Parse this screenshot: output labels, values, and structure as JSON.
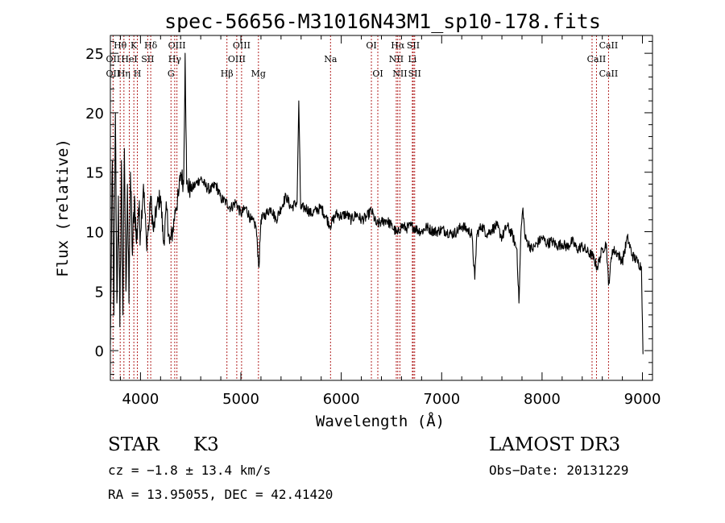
{
  "chart_data": {
    "type": "line",
    "title": "spec-56656-M31016N43M1_sp10-178.fits",
    "xlabel": "Wavelength (Å)",
    "ylabel": "Flux (relative)",
    "xlim": [
      3700,
      9100
    ],
    "ylim": [
      -2.5,
      26.5
    ],
    "xticks": [
      4000,
      5000,
      6000,
      7000,
      8000,
      9000
    ],
    "yticks": [
      0,
      5,
      10,
      15,
      20,
      25
    ],
    "series": [
      {
        "name": "spectrum",
        "anchors": [
          [
            3700,
            0.5
          ],
          [
            3720,
            16
          ],
          [
            3735,
            3
          ],
          [
            3750,
            20
          ],
          [
            3765,
            4
          ],
          [
            3780,
            13
          ],
          [
            3795,
            2
          ],
          [
            3810,
            16
          ],
          [
            3825,
            3
          ],
          [
            3840,
            17
          ],
          [
            3855,
            5
          ],
          [
            3870,
            14
          ],
          [
            3885,
            4
          ],
          [
            3900,
            15
          ],
          [
            3920,
            8
          ],
          [
            3940,
            13
          ],
          [
            3960,
            9
          ],
          [
            3980,
            12
          ],
          [
            4000,
            10
          ],
          [
            4030,
            14
          ],
          [
            4060,
            9
          ],
          [
            4090,
            11
          ],
          [
            4100,
            13
          ],
          [
            4130,
            10
          ],
          [
            4160,
            12
          ],
          [
            4200,
            13
          ],
          [
            4230,
            9
          ],
          [
            4260,
            12
          ],
          [
            4290,
            9
          ],
          [
            4320,
            10
          ],
          [
            4350,
            12
          ],
          [
            4380,
            13
          ],
          [
            4400,
            15
          ],
          [
            4430,
            14
          ],
          [
            4445,
            25
          ],
          [
            4460,
            14
          ],
          [
            4500,
            13.5
          ],
          [
            4550,
            14
          ],
          [
            4600,
            14.5
          ],
          [
            4650,
            13.8
          ],
          [
            4700,
            13.5
          ],
          [
            4750,
            14
          ],
          [
            4800,
            12.8
          ],
          [
            4850,
            12.5
          ],
          [
            4900,
            12
          ],
          [
            4950,
            12.5
          ],
          [
            5000,
            11.5
          ],
          [
            5050,
            12
          ],
          [
            5100,
            11
          ],
          [
            5150,
            10.5
          ],
          [
            5180,
            7
          ],
          [
            5200,
            11
          ],
          [
            5250,
            11.5
          ],
          [
            5300,
            12
          ],
          [
            5350,
            11
          ],
          [
            5400,
            12
          ],
          [
            5450,
            13
          ],
          [
            5500,
            12
          ],
          [
            5560,
            12.5
          ],
          [
            5577,
            21
          ],
          [
            5595,
            12
          ],
          [
            5650,
            12
          ],
          [
            5700,
            11.5
          ],
          [
            5750,
            11.8
          ],
          [
            5800,
            12
          ],
          [
            5850,
            11.2
          ],
          [
            5890,
            10.5
          ],
          [
            5950,
            11.5
          ],
          [
            6000,
            11.3
          ],
          [
            6050,
            11.5
          ],
          [
            6100,
            11
          ],
          [
            6150,
            11.5
          ],
          [
            6200,
            11
          ],
          [
            6250,
            11.2
          ],
          [
            6300,
            11.8
          ],
          [
            6350,
            10.6
          ],
          [
            6400,
            10.8
          ],
          [
            6450,
            11
          ],
          [
            6500,
            10.5
          ],
          [
            6560,
            9.8
          ],
          [
            6600,
            10.5
          ],
          [
            6650,
            10.3
          ],
          [
            6700,
            10.5
          ],
          [
            6750,
            10.2
          ],
          [
            6800,
            10
          ],
          [
            6850,
            10.4
          ],
          [
            6900,
            10.1
          ],
          [
            6950,
            10
          ],
          [
            7000,
            10.2
          ],
          [
            7050,
            10
          ],
          [
            7100,
            9.8
          ],
          [
            7150,
            10
          ],
          [
            7200,
            10.5
          ],
          [
            7250,
            10.2
          ],
          [
            7300,
            9.8
          ],
          [
            7330,
            6
          ],
          [
            7350,
            9.8
          ],
          [
            7400,
            10.5
          ],
          [
            7450,
            9.8
          ],
          [
            7500,
            10.2
          ],
          [
            7550,
            10.5
          ],
          [
            7600,
            9.5
          ],
          [
            7650,
            10.5
          ],
          [
            7700,
            9.8
          ],
          [
            7750,
            8.5
          ],
          [
            7770,
            4
          ],
          [
            7790,
            10
          ],
          [
            7810,
            12
          ],
          [
            7830,
            9.5
          ],
          [
            7850,
            9.2
          ],
          [
            7900,
            8.5
          ],
          [
            7950,
            9
          ],
          [
            8000,
            9.5
          ],
          [
            8050,
            9
          ],
          [
            8100,
            9.2
          ],
          [
            8150,
            8.8
          ],
          [
            8200,
            9
          ],
          [
            8250,
            8.7
          ],
          [
            8300,
            9.2
          ],
          [
            8350,
            8.5
          ],
          [
            8400,
            8.8
          ],
          [
            8450,
            8.3
          ],
          [
            8500,
            8
          ],
          [
            8550,
            7
          ],
          [
            8600,
            8.5
          ],
          [
            8640,
            9
          ],
          [
            8662,
            5.5
          ],
          [
            8700,
            8.5
          ],
          [
            8750,
            8.2
          ],
          [
            8800,
            7.5
          ],
          [
            8850,
            9.5
          ],
          [
            8900,
            8
          ],
          [
            8950,
            7.5
          ],
          [
            8990,
            7
          ],
          [
            9000,
            2.5
          ],
          [
            9005,
            -0.3
          ]
        ]
      }
    ],
    "line_labels": [
      {
        "text": "Hθ",
        "wl": 3798,
        "row": 1
      },
      {
        "text": "K",
        "wl": 3934,
        "row": 1
      },
      {
        "text": "Hδ",
        "wl": 4102,
        "row": 1
      },
      {
        "text": "OIII",
        "wl": 4363,
        "row": 1
      },
      {
        "text": "OIII",
        "wl": 5007,
        "row": 1
      },
      {
        "text": "OI",
        "wl": 6300,
        "row": 1
      },
      {
        "text": "Hα",
        "wl": 6563,
        "row": 1
      },
      {
        "text": "SII",
        "wl": 6717,
        "row": 1
      },
      {
        "text": "CaII",
        "wl": 8662,
        "row": 1
      },
      {
        "text": "OII",
        "wl": 3727,
        "row": 2
      },
      {
        "text": "HeI",
        "wl": 3889,
        "row": 2
      },
      {
        "text": "SII",
        "wl": 4072,
        "row": 2
      },
      {
        "text": "Hγ",
        "wl": 4341,
        "row": 2
      },
      {
        "text": "OIII",
        "wl": 4959,
        "row": 2
      },
      {
        "text": "Na",
        "wl": 5893,
        "row": 2
      },
      {
        "text": "NII",
        "wl": 6548,
        "row": 2
      },
      {
        "text": "Li",
        "wl": 6708,
        "row": 2
      },
      {
        "text": "CaII",
        "wl": 8542,
        "row": 2
      },
      {
        "text": "OII",
        "wl": 3727,
        "row": 3
      },
      {
        "text": "Hη",
        "wl": 3835,
        "row": 3
      },
      {
        "text": "H",
        "wl": 3969,
        "row": 3
      },
      {
        "text": "G",
        "wl": 4304,
        "row": 3
      },
      {
        "text": "Hβ",
        "wl": 4861,
        "row": 3
      },
      {
        "text": "Mg",
        "wl": 5175,
        "row": 3
      },
      {
        "text": "OI",
        "wl": 6364,
        "row": 3
      },
      {
        "text": "NII",
        "wl": 6584,
        "row": 3
      },
      {
        "text": "SII",
        "wl": 6731,
        "row": 3
      },
      {
        "text": "CaII",
        "wl": 8662,
        "row": 3
      }
    ],
    "line_markers": [
      3727,
      3798,
      3835,
      3889,
      3934,
      3969,
      4072,
      4102,
      4304,
      4341,
      4363,
      4861,
      4959,
      5007,
      5175,
      5893,
      6300,
      6364,
      6548,
      6563,
      6584,
      6708,
      6717,
      6731,
      8498,
      8542,
      8662
    ]
  },
  "info": {
    "obj_class": "STAR",
    "subclass": "K3",
    "survey": "LAMOST DR3",
    "cz": "cz = −1.8 ± 13.4 km/s",
    "obs_date": "Obs−Date: 20131229",
    "radec": "RA =  13.95055, DEC =  42.41420"
  },
  "colors": {
    "line_marker": "#b22222",
    "spectrum": "#000000"
  }
}
